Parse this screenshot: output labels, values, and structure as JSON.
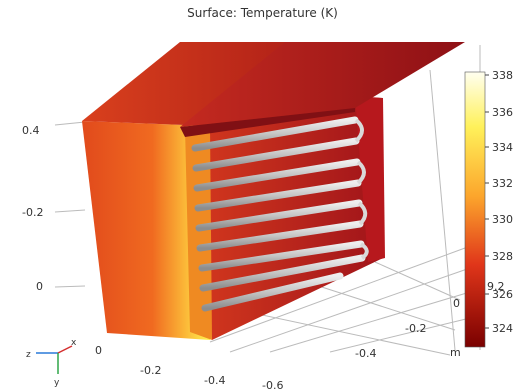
{
  "title": "Surface: Temperature (K)",
  "colorbar": {
    "ticks": [
      "338",
      "336",
      "334",
      "332",
      "330",
      "328",
      "326",
      "324"
    ],
    "stray_label": "9.2",
    "top_color": "#fffff0",
    "bottom_color": "#7a0000"
  },
  "axes": {
    "z_ticks": [
      "0.4",
      "-0.2",
      "0"
    ],
    "x_ticks": [
      "0",
      "-0.2",
      "-0.4",
      "-0.6"
    ],
    "y_ticks": [
      "0",
      "-0.2",
      "-0.4"
    ],
    "unit": "m"
  },
  "triad": {
    "x": "x",
    "y": "y",
    "z": "z"
  },
  "colors": {
    "box_front": "#e2451c",
    "box_top": "#c62820",
    "lid": "#b81e22",
    "hot": "#fff04a",
    "tube": "#c9c9c9"
  }
}
